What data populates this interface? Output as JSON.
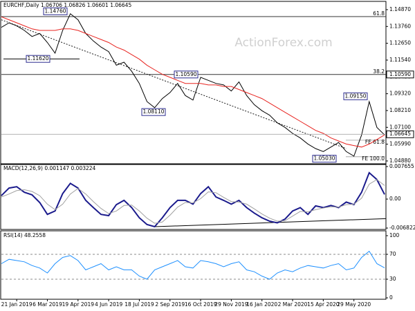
{
  "chart_data": [
    {
      "type": "line",
      "title": "EURCHF,Daily 1.06706 1.06826 1.06601 1.06645",
      "watermark": "ActionForex.com",
      "categories": [
        null,
        null,
        "21 Jan 2019",
        null,
        null,
        null,
        "6 Mar 2019",
        null,
        null,
        null,
        "19 Apr 2019",
        null,
        null,
        null,
        "4 Jun 2019",
        null,
        null,
        null,
        "18 Jul 2019",
        null,
        null,
        null,
        "2 Sep 2019",
        null,
        null,
        null,
        "16 Oct 2019",
        null,
        null,
        null,
        "29 Nov 2019",
        null,
        null,
        null,
        "16 Jan 2020",
        null,
        null,
        null,
        "2 Mar 2020",
        null,
        null,
        null,
        "15 Apr 2020",
        null,
        null,
        null,
        "29 May 2020",
        null,
        null,
        null,
        null
      ],
      "series": [
        {
          "color": "#000000",
          "values": [
            1.137,
            1.14,
            1.138,
            1.135,
            1.131,
            1.133,
            1.127,
            1.12,
            1.135,
            1.146,
            1.142,
            1.133,
            1.128,
            1.124,
            1.121,
            1.112,
            1.114,
            1.108,
            1.1,
            1.088,
            1.084,
            1.09,
            1.094,
            1.1,
            1.092,
            1.089,
            1.104,
            1.102,
            1.1,
            1.099,
            1.095,
            1.101,
            1.092,
            1.086,
            1.082,
            1.079,
            1.074,
            1.071,
            1.067,
            1.064,
            1.06,
            1.057,
            1.055,
            1.058,
            1.061,
            1.055,
            1.052,
            1.066,
            1.088,
            1.071,
            1.066
          ]
        },
        {
          "color": "#e8231f",
          "values": [
            1.144,
            1.142,
            1.14,
            1.138,
            1.136,
            1.135,
            1.135,
            1.135,
            1.136,
            1.136,
            1.135,
            1.133,
            1.131,
            1.129,
            1.127,
            1.124,
            1.122,
            1.119,
            1.116,
            1.112,
            1.109,
            1.106,
            1.104,
            1.102,
            1.1,
            1.1,
            1.1,
            1.099,
            1.099,
            1.098,
            1.098,
            1.096,
            1.094,
            1.092,
            1.09,
            1.087,
            1.084,
            1.081,
            1.078,
            1.075,
            1.072,
            1.069,
            1.067,
            1.064,
            1.062,
            1.06,
            1.059,
            1.058,
            1.06,
            1.063,
            1.066
          ]
        }
      ],
      "trend_line": [
        1.142,
        1.057
      ],
      "ylim": [
        1.0474,
        1.1537
      ],
      "yticks": [
        {
          "value": 1.1487,
          "label": "1.14870"
        },
        {
          "value": 1.1376,
          "label": "1.13760"
        },
        {
          "value": 1.1265,
          "label": "1.12650"
        },
        {
          "value": 1.1154,
          "label": "1.11540"
        },
        {
          "value": 1.1043,
          "label": "1.10430"
        },
        {
          "value": 1.0932,
          "label": "1.09320"
        },
        {
          "value": 1.0821,
          "label": "1.08210"
        },
        {
          "value": 1.071,
          "label": "1.07100"
        },
        {
          "value": 1.0599,
          "label": "1.05990"
        },
        {
          "value": 1.0488,
          "label": "1.04880"
        }
      ],
      "levels": [
        {
          "label": "61.8",
          "value": 1.1441
        },
        {
          "label": "38.2",
          "value": 1.1059
        },
        {
          "label": "FE 61.8",
          "value": 1.0625
        },
        {
          "label": "FE 100.0",
          "value": 1.0516
        }
      ],
      "axis_markers": [
        {
          "value": 1.1059,
          "label": "1.10590"
        },
        {
          "value": 1.06645,
          "label": "1.06645"
        }
      ],
      "point_labels": [
        {
          "value": 1.1476,
          "label": "1.14760"
        },
        {
          "value": 1.1162,
          "label": "1.11620"
        },
        {
          "value": 1.1059,
          "label": "1.10590"
        },
        {
          "value": 1.0811,
          "label": "1.08110"
        },
        {
          "value": 1.0915,
          "label": "1.09150"
        },
        {
          "value": 1.0503,
          "label": "1.05030"
        }
      ]
    },
    {
      "type": "line",
      "title": "MACD(12,26,9) 0.001147 0.003224",
      "series": [
        {
          "color": "#1a1a8c",
          "values": [
            0.0008,
            0.0026,
            0.0029,
            0.0016,
            0.001,
            -0.0008,
            -0.0036,
            -0.0028,
            0.0013,
            0.0037,
            0.0026,
            -0.0003,
            -0.002,
            -0.0036,
            -0.0039,
            -0.0013,
            -0.0003,
            -0.002,
            -0.0044,
            -0.006,
            -0.0065,
            -0.0044,
            -0.002,
            -0.0003,
            -0.0003,
            -0.0012,
            0.0013,
            0.0029,
            0.0005,
            -0.0003,
            -0.0012,
            -0.0003,
            -0.002,
            -0.0033,
            -0.0044,
            -0.0052,
            -0.0056,
            -0.0047,
            -0.0028,
            -0.002,
            -0.0036,
            -0.0016,
            -0.002,
            -0.0015,
            -0.002,
            -0.0007,
            -0.0013,
            0.0016,
            0.0062,
            0.0046,
            0.0011
          ]
        },
        {
          "color": "#a0a0a0",
          "values": [
            0.0005,
            0.0012,
            0.002,
            0.0022,
            0.0018,
            0.0008,
            -0.0012,
            -0.0025,
            -0.0012,
            0.0012,
            0.0025,
            0.0012,
            -0.0006,
            -0.0022,
            -0.0034,
            -0.0028,
            -0.0015,
            -0.0014,
            -0.0028,
            -0.0045,
            -0.0057,
            -0.0054,
            -0.0038,
            -0.0019,
            -0.0008,
            -0.0009,
            0.0001,
            0.0017,
            0.0015,
            0.0004,
            -0.0006,
            -0.0007,
            -0.0012,
            -0.0023,
            -0.0035,
            -0.0045,
            -0.0052,
            -0.0051,
            -0.004,
            -0.0029,
            -0.003,
            -0.0025,
            -0.0021,
            -0.0018,
            -0.0019,
            -0.0013,
            -0.0012,
            0.0002,
            0.0035,
            0.0046,
            0.0032
          ]
        }
      ],
      "trend_line": [
        -0.0065,
        -0.0046
      ],
      "ylim": [
        -0.006822,
        0.007655
      ],
      "yticks": [
        0.007655,
        {
          "value": 0,
          "label": "0.00"
        },
        -0.006822
      ]
    },
    {
      "type": "line",
      "title": "RSI(14) 48.2558",
      "series": [
        {
          "color": "#1e90ff",
          "values": [
            55,
            62,
            60,
            58,
            52,
            48,
            40,
            55,
            65,
            68,
            60,
            45,
            50,
            55,
            45,
            50,
            45,
            45,
            35,
            30,
            45,
            50,
            55,
            60,
            50,
            48,
            60,
            58,
            55,
            50,
            55,
            58,
            45,
            42,
            35,
            30,
            40,
            45,
            42,
            48,
            52,
            50,
            48,
            52,
            55,
            45,
            48,
            65,
            75,
            55,
            48.2558
          ]
        }
      ],
      "ylim": [
        0,
        100
      ],
      "yticks": [
        100,
        70,
        30,
        0
      ],
      "guide_lines": [
        70,
        30
      ]
    }
  ]
}
